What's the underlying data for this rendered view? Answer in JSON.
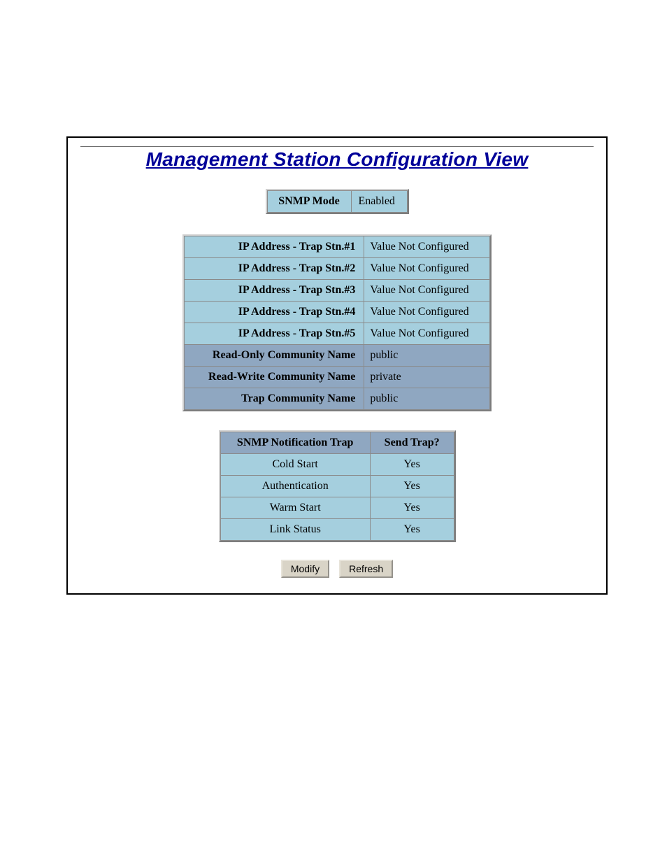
{
  "colors": {
    "title_color": "#000099",
    "header_bg": "#8fa7c1",
    "cell_bg": "#a5cfde",
    "border": "#8a8a8a",
    "button_bg": "#d9d4c7",
    "frame_border": "#000000",
    "page_bg": "#ffffff"
  },
  "title": "Management Station Configuration View",
  "snmp_mode": {
    "label": "SNMP Mode",
    "value": "Enabled"
  },
  "settings": {
    "rows": [
      {
        "key": "IP Address - Trap Stn.#1",
        "value": "Value Not Configured",
        "shade": false
      },
      {
        "key": "IP Address - Trap Stn.#2",
        "value": "Value Not Configured",
        "shade": false
      },
      {
        "key": "IP Address - Trap Stn.#3",
        "value": "Value Not Configured",
        "shade": false
      },
      {
        "key": "IP Address - Trap Stn.#4",
        "value": "Value Not Configured",
        "shade": false
      },
      {
        "key": "IP Address - Trap Stn.#5",
        "value": "Value Not Configured",
        "shade": false
      },
      {
        "key": "Read-Only Community Name",
        "value": "public",
        "shade": true
      },
      {
        "key": "Read-Write Community Name",
        "value": "private",
        "shade": true
      },
      {
        "key": "Trap Community Name",
        "value": "public",
        "shade": true
      }
    ]
  },
  "notification": {
    "headers": {
      "col_a": "SNMP Notification Trap",
      "col_b": "Send Trap?"
    },
    "rows": [
      {
        "name": "Cold Start",
        "send": "Yes"
      },
      {
        "name": "Authentication",
        "send": "Yes"
      },
      {
        "name": "Warm Start",
        "send": "Yes"
      },
      {
        "name": "Link Status",
        "send": "Yes"
      }
    ]
  },
  "buttons": {
    "modify": "Modify",
    "refresh": "Refresh"
  }
}
